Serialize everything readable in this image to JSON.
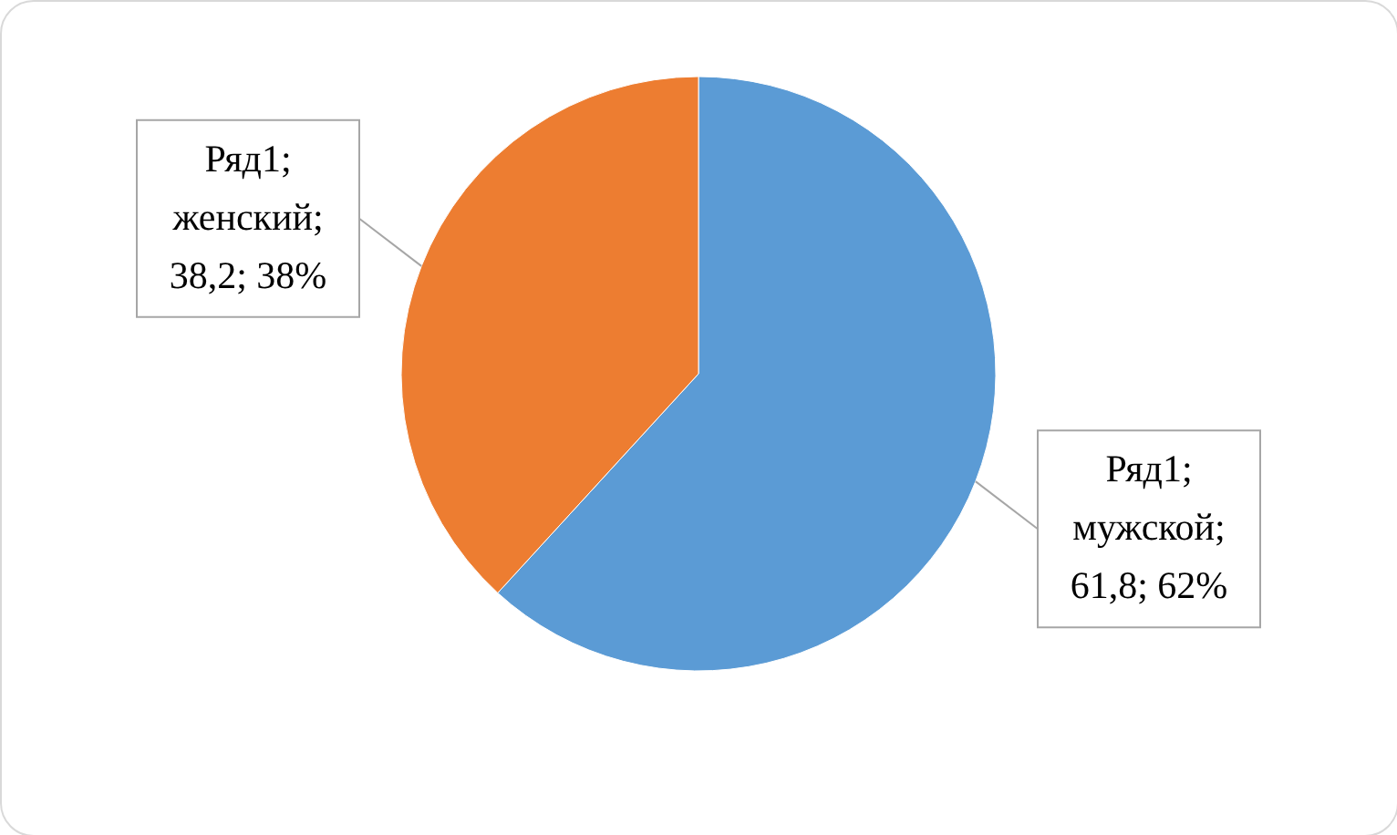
{
  "chart_data": {
    "type": "pie",
    "values": [
      61.8,
      38.2
    ],
    "colors": [
      "#5b9bd5",
      "#ed7d31"
    ],
    "value_labels": [
      "Ряд1; мужской; 61,8; 62%",
      "Ряд1; женский; 38,2; 38%"
    ]
  }
}
